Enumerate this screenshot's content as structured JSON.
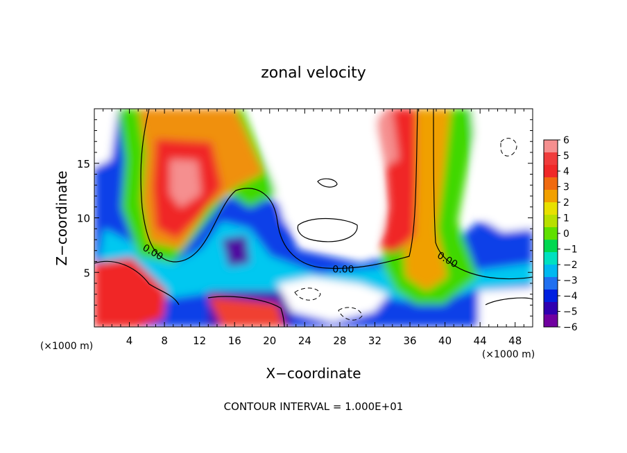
{
  "chart_data": {
    "type": "heatmap",
    "title": "zonal velocity",
    "xlabel": "X−coordinate",
    "ylabel": "Z−coordinate",
    "x_unit_label": "(×1000 m)",
    "z_unit_label": "(×1000 m)",
    "footer": "CONTOUR INTERVAL = 1.000E+01",
    "xlim": [
      0,
      50
    ],
    "ylim": [
      0,
      20
    ],
    "x_ticks": [
      4,
      8,
      12,
      16,
      20,
      24,
      28,
      32,
      36,
      40,
      44,
      48
    ],
    "y_ticks": [
      5,
      10,
      15
    ],
    "colorbar": {
      "ticks": [
        6,
        5,
        4,
        3,
        2,
        1,
        0,
        -1,
        -2,
        -3,
        -4,
        -5,
        -6
      ],
      "colors": [
        "#f58f8f",
        "#f03c3c",
        "#f02828",
        "#f06a10",
        "#f2a000",
        "#e8e000",
        "#b8e000",
        "#60e000",
        "#00d850",
        "#00e0c0",
        "#00b8f0",
        "#2070f0",
        "#0020e0",
        "#3000b0",
        "#7000a0"
      ]
    },
    "contour_label": "0.00",
    "contour_labels": [
      {
        "text": "0.00",
        "x": 6.5,
        "z": 6.6
      },
      {
        "text": "0.00",
        "x": 28.4,
        "z": 5.0
      },
      {
        "text": "0.00",
        "x": 40.1,
        "z": 5.9
      }
    ]
  }
}
